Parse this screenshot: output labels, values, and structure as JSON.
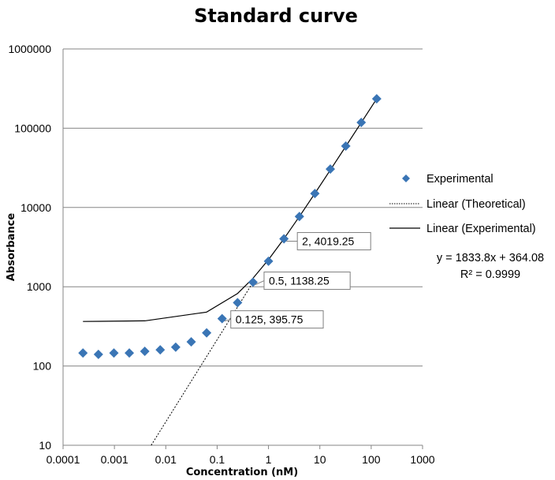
{
  "chart_data": {
    "type": "scatter",
    "title": "Standard curve",
    "xlabel": "Concentration (nM)",
    "ylabel": "Absorbance",
    "x_scale": "log",
    "y_scale": "log",
    "xlim": [
      0.0001,
      1000
    ],
    "ylim": [
      10,
      1000000
    ],
    "grid": "horizontal major",
    "legend_position": "right",
    "x_tick_labels": [
      "0.0001",
      "0.001",
      "0.01",
      "0.1",
      "1",
      "10",
      "100",
      "1000"
    ],
    "y_tick_labels": [
      "10",
      "100",
      "1000",
      "10000",
      "100000",
      "1000000"
    ],
    "series": [
      {
        "name": "Experimental",
        "marker": "diamond",
        "color": "#3a75b5",
        "x": [
          0.000244,
          0.000488,
          0.000977,
          0.00195,
          0.0039,
          0.0078,
          0.0156,
          0.03125,
          0.0625,
          0.125,
          0.25,
          0.5,
          1,
          2,
          4,
          8,
          16,
          32,
          64,
          128
        ],
        "y": [
          146,
          140,
          146,
          146,
          153,
          160,
          173,
          202,
          262,
          395.75,
          630,
          1138.25,
          2100,
          4019.25,
          7700,
          15000,
          30500,
          59500,
          118000,
          235000
        ]
      },
      {
        "name": "Linear (Theoretical)",
        "line_style": "dotted",
        "color": "#000000",
        "x": [
          0.0052,
          0.5
        ],
        "y": [
          10,
          1140
        ]
      },
      {
        "name": "Linear (Experimental)",
        "line_style": "solid",
        "color": "#000000",
        "x": [
          0.000244,
          0.0039,
          0.0625,
          0.25,
          0.5,
          1,
          2,
          4,
          8,
          16,
          32,
          64,
          128
        ],
        "y": [
          364.5,
          371.2,
          478.7,
          822.5,
          1281,
          2198,
          4032,
          7699,
          15034,
          29705,
          59046,
          117728,
          235092
        ]
      }
    ],
    "data_labels": [
      {
        "x": 2,
        "y": 4019.25,
        "text": "2, 4019.25"
      },
      {
        "x": 0.5,
        "y": 1138.25,
        "text": "0.5, 1138.25"
      },
      {
        "x": 0.125,
        "y": 395.75,
        "text": "0.125, 395.75"
      }
    ],
    "trendline": {
      "equation": "y = 1833.8x + 364.08",
      "r_squared": "R² = 0.9999"
    }
  }
}
